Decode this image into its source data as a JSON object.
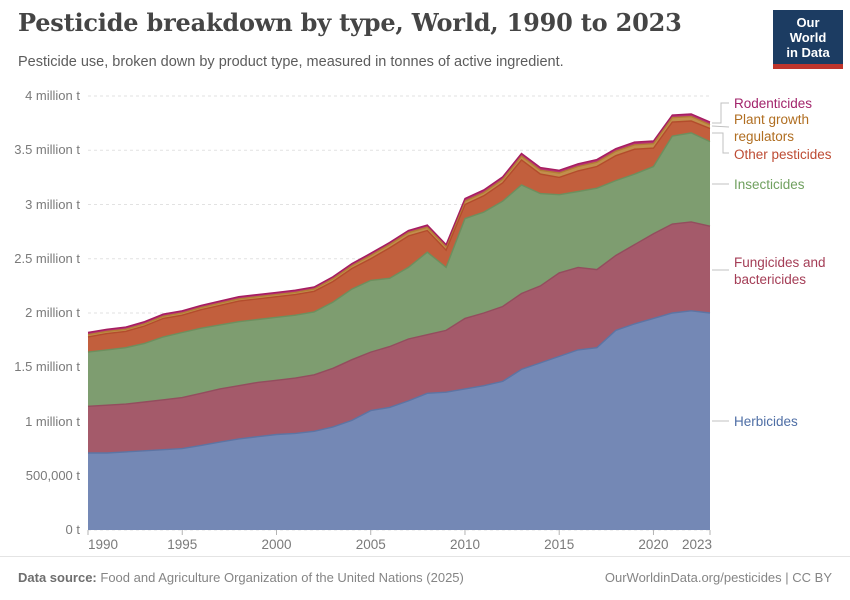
{
  "header": {
    "title": "Pesticide breakdown by type, World, 1990 to 2023",
    "subtitle": "Pesticide use, broken down by product type, measured in tonnes of active ingredient.",
    "logo": {
      "line1": "Our World",
      "line2": "in Data"
    }
  },
  "footer": {
    "source_label": "Data source:",
    "source": "Food and Agriculture Organization of the United Nations (2025)",
    "right": "OurWorldinData.org/pesticides | CC BY"
  },
  "chart_data": {
    "type": "area",
    "stacked": true,
    "title": "Pesticide breakdown by type, World, 1990 to 2023",
    "unit": "tonnes of active ingredient",
    "values_unit": "million tonnes",
    "grid": "dashed-horizontal",
    "legend_position": "right",
    "xlim": [
      1990,
      2023
    ],
    "ylim": [
      0,
      4
    ],
    "x": [
      1990,
      1991,
      1992,
      1993,
      1994,
      1995,
      1996,
      1997,
      1998,
      1999,
      2000,
      2001,
      2002,
      2003,
      2004,
      2005,
      2006,
      2007,
      2008,
      2009,
      2010,
      2011,
      2012,
      2013,
      2014,
      2015,
      2016,
      2017,
      2018,
      2019,
      2020,
      2021,
      2022,
      2023
    ],
    "xticks": [
      1990,
      1995,
      2000,
      2005,
      2010,
      2015,
      2020,
      2023
    ],
    "yticks": [
      {
        "value": 0,
        "label": "0 t"
      },
      {
        "value": 0.5,
        "label": "500,000 t"
      },
      {
        "value": 1,
        "label": "1 million t"
      },
      {
        "value": 1.5,
        "label": "1.5 million t"
      },
      {
        "value": 2,
        "label": "2 million t"
      },
      {
        "value": 2.5,
        "label": "2.5 million t"
      },
      {
        "value": 3,
        "label": "3 million t"
      },
      {
        "value": 3.5,
        "label": "3.5 million t"
      },
      {
        "value": 4,
        "label": "4 million t"
      }
    ],
    "series": [
      {
        "name": "Herbicides",
        "color": "#7488b5",
        "stroke": "#5d74a3",
        "label_color": "#4e6ea5",
        "values": [
          0.71,
          0.71,
          0.72,
          0.73,
          0.74,
          0.75,
          0.78,
          0.81,
          0.84,
          0.86,
          0.88,
          0.89,
          0.91,
          0.95,
          1.01,
          1.1,
          1.13,
          1.19,
          1.26,
          1.27,
          1.3,
          1.33,
          1.37,
          1.48,
          1.54,
          1.6,
          1.66,
          1.68,
          1.84,
          1.9,
          1.95,
          2.0,
          2.02,
          2.0
        ]
      },
      {
        "name": "Fungicides and bactericides",
        "color": "#a45a6a",
        "stroke": "#934d5e",
        "label_color": "#a43d56",
        "values": [
          0.43,
          0.44,
          0.44,
          0.45,
          0.46,
          0.47,
          0.48,
          0.49,
          0.49,
          0.5,
          0.5,
          0.51,
          0.52,
          0.54,
          0.56,
          0.54,
          0.56,
          0.57,
          0.54,
          0.57,
          0.65,
          0.67,
          0.69,
          0.7,
          0.71,
          0.77,
          0.76,
          0.72,
          0.69,
          0.73,
          0.78,
          0.82,
          0.82,
          0.8
        ]
      },
      {
        "name": "Insecticides",
        "color": "#7e9d70",
        "stroke": "#6d8f5e",
        "label_color": "#70a05f",
        "values": [
          0.5,
          0.51,
          0.52,
          0.54,
          0.58,
          0.6,
          0.6,
          0.59,
          0.59,
          0.58,
          0.58,
          0.58,
          0.58,
          0.61,
          0.65,
          0.66,
          0.63,
          0.66,
          0.76,
          0.58,
          0.92,
          0.93,
          0.97,
          1.0,
          0.85,
          0.72,
          0.7,
          0.75,
          0.69,
          0.65,
          0.62,
          0.81,
          0.82,
          0.78
        ]
      },
      {
        "name": "Other pesticides",
        "color": "#c25f3d",
        "stroke": "#b34c2c",
        "label_color": "#bd4b33",
        "values": [
          0.14,
          0.15,
          0.15,
          0.16,
          0.17,
          0.16,
          0.17,
          0.18,
          0.19,
          0.19,
          0.19,
          0.19,
          0.19,
          0.19,
          0.19,
          0.2,
          0.28,
          0.29,
          0.2,
          0.16,
          0.13,
          0.15,
          0.17,
          0.23,
          0.18,
          0.16,
          0.19,
          0.2,
          0.23,
          0.23,
          0.17,
          0.13,
          0.11,
          0.12
        ]
      },
      {
        "name": "Plant growth regulators",
        "color": "#c28e4c",
        "stroke": "#b37c35",
        "label_color": "#b06e21",
        "values": [
          0.02,
          0.02,
          0.02,
          0.02,
          0.02,
          0.02,
          0.02,
          0.02,
          0.02,
          0.02,
          0.02,
          0.02,
          0.02,
          0.025,
          0.025,
          0.03,
          0.03,
          0.03,
          0.03,
          0.03,
          0.03,
          0.03,
          0.03,
          0.035,
          0.035,
          0.04,
          0.04,
          0.04,
          0.04,
          0.04,
          0.04,
          0.04,
          0.04,
          0.035
        ]
      },
      {
        "name": "Rodenticides",
        "color": "#b72f70",
        "stroke": "#a51d60",
        "label_color": "#a2246b",
        "values": [
          0.02,
          0.02,
          0.02,
          0.02,
          0.02,
          0.02,
          0.02,
          0.02,
          0.02,
          0.02,
          0.02,
          0.02,
          0.02,
          0.02,
          0.02,
          0.02,
          0.02,
          0.02,
          0.02,
          0.02,
          0.025,
          0.025,
          0.025,
          0.025,
          0.025,
          0.025,
          0.025,
          0.025,
          0.025,
          0.025,
          0.025,
          0.025,
          0.025,
          0.025
        ]
      }
    ]
  }
}
